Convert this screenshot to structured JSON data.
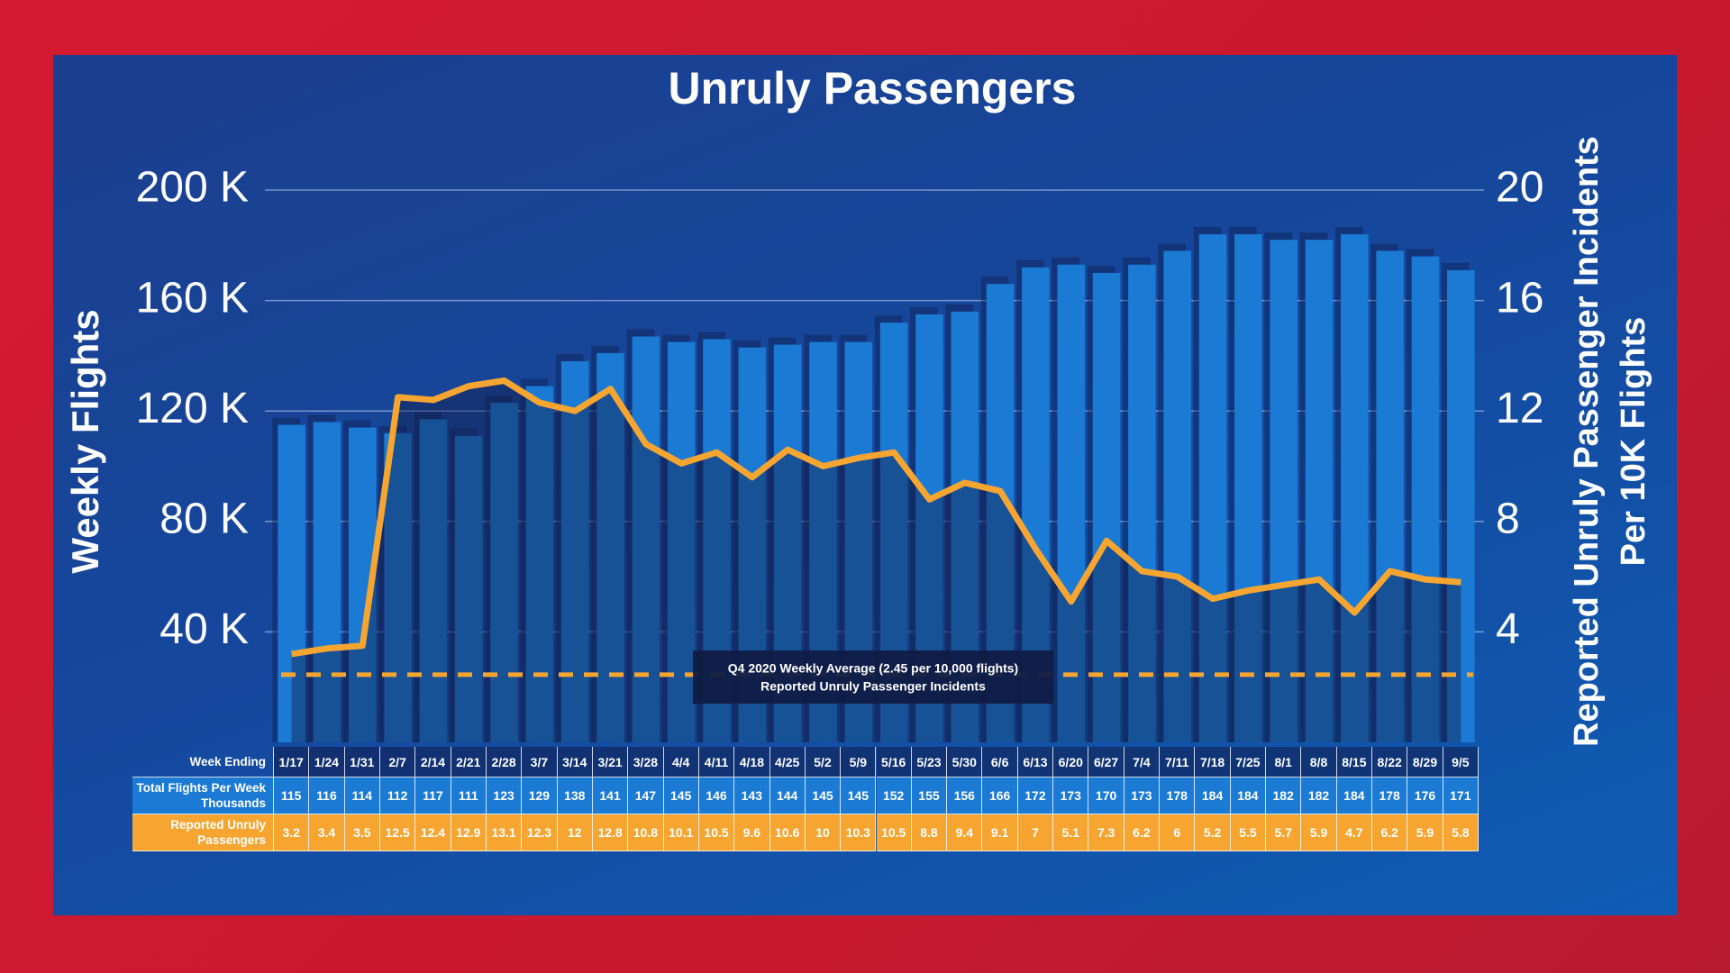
{
  "chart_data": {
    "type": "bar-line",
    "title": "Unruly Passengers",
    "ylabel": "Weekly Flights",
    "y2label": [
      "Reported Unruly Passenger Incidents",
      "Per 10K Flights"
    ],
    "category_label": "Week Ending",
    "categories": [
      "1/17",
      "1/24",
      "1/31",
      "2/7",
      "2/14",
      "2/21",
      "2/28",
      "3/7",
      "3/14",
      "3/21",
      "3/28",
      "4/4",
      "4/11",
      "4/18",
      "4/25",
      "5/2",
      "5/9",
      "5/16",
      "5/23",
      "5/30",
      "6/6",
      "6/13",
      "6/20",
      "6/27",
      "7/4",
      "7/11",
      "7/18",
      "7/25",
      "8/1",
      "8/8",
      "8/15",
      "8/22",
      "8/29",
      "9/5"
    ],
    "series": [
      {
        "name": "Total Flights Per Week Thousands",
        "color": "#1a7ad4",
        "values": [
          115,
          116,
          114,
          112,
          117,
          111,
          123,
          129,
          138,
          141,
          147,
          145,
          146,
          143,
          144,
          145,
          145,
          152,
          155,
          156,
          166,
          172,
          173,
          170,
          173,
          178,
          184,
          184,
          182,
          182,
          184,
          178,
          176,
          171
        ]
      },
      {
        "name": "Reported Unruly Passengers",
        "color": "#f6a531",
        "axis": "y2",
        "values": [
          3.2,
          3.4,
          3.5,
          12.5,
          12.4,
          12.9,
          13.1,
          12.3,
          12,
          12.8,
          10.8,
          10.1,
          10.5,
          9.6,
          10.6,
          10,
          10.3,
          10.5,
          8.8,
          9.4,
          9.1,
          7,
          5.1,
          7.3,
          6.2,
          6,
          5.2,
          5.5,
          5.7,
          5.9,
          4.7,
          6.2,
          5.9,
          5.8
        ]
      }
    ],
    "ylim": [
      0,
      200
    ],
    "yticks": [
      {
        "value": 40,
        "label": "40 K"
      },
      {
        "value": 80,
        "label": "80 K"
      },
      {
        "value": 120,
        "label": "120 K"
      },
      {
        "value": 160,
        "label": "160 K"
      },
      {
        "value": 200,
        "label": "200 K"
      }
    ],
    "y2lim": [
      0,
      20
    ],
    "y2ticks": [
      4,
      8,
      12,
      16,
      20
    ],
    "grid": true,
    "reference": {
      "value": 2.45,
      "axis": "y2",
      "color": "#f6a531",
      "annotation": [
        "Q4 2020 Weekly Average (2.45 per 10,000 flights)",
        "Reported Unruly Passenger Incidents"
      ]
    }
  }
}
